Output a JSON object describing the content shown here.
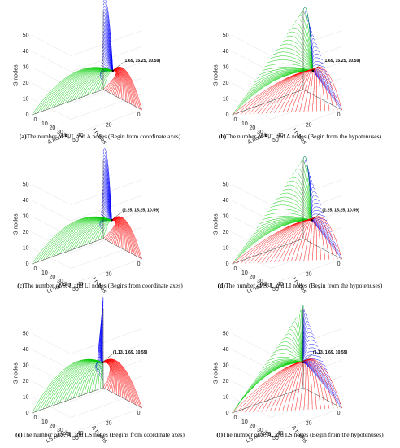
{
  "colors": {
    "s_curve": "#0000ff",
    "i_curve": "#00cc00",
    "third_curve": "#ff0000",
    "axis": "#000000"
  },
  "panels": [
    {
      "letter": "(a)",
      "caption": "The number of S, I, and A nodes (Begin from coordinate axes)",
      "point_label": "(1.69, 15.25, 10.59)",
      "labels": {
        "z": "S nodes",
        "x": "I nodes",
        "y": "A nodes"
      },
      "start": "axes"
    },
    {
      "letter": "(b)",
      "caption": "The number of S, I, and A nodes (Begin from the hypotenuses)",
      "point_label": "(1.69, 15.25, 10.59)",
      "labels": {
        "z": "S nodes",
        "x": "I nodes",
        "y": "A nodes"
      },
      "start": "hypotenuse"
    },
    {
      "letter": "(c)",
      "caption": "The number of S, I, and LI nodes (Begins from coordinate axes)",
      "point_label": "(2.25, 15.25, 10.59)",
      "labels": {
        "z": "S nodes",
        "x": "I nodes",
        "y": "LI nodes"
      },
      "start": "axes"
    },
    {
      "letter": "(d)",
      "caption": "The number of S, I, and LI nodes (Begin from the hypotenuses)",
      "point_label": "(2.25, 15.25, 10.59)",
      "labels": {
        "z": "S nodes",
        "x": "I nodes",
        "y": "LI nodes"
      },
      "start": "hypotenuse"
    },
    {
      "letter": "(e)",
      "caption": "The number of S, A, and LS nodes (Begins from coordinate axes)",
      "point_label": "(1.13, 1.69, 10.59)",
      "labels": {
        "z": "S nodes",
        "x": "A nodes",
        "y": "LS nodes"
      },
      "start": "axes"
    },
    {
      "letter": "(f)",
      "caption": "The number of S, A, and LS nodes (Begin from the hypotenuses)",
      "point_label": "(1.13, 1.69, 10.59)",
      "labels": {
        "z": "S nodes",
        "x": "A nodes",
        "y": "LS nodes"
      },
      "start": "hypotenuse"
    }
  ],
  "chart_data": [
    {
      "type": "line3d",
      "x_label": "I nodes",
      "y_label": "A nodes",
      "z_label": "S nodes",
      "x_ticks": [
        0,
        20,
        40
      ],
      "y_ticks": [
        0,
        10,
        20,
        30,
        40,
        50
      ],
      "z_ticks": [
        0,
        10,
        20,
        30,
        40,
        50
      ],
      "xlim": [
        0,
        50
      ],
      "ylim": [
        0,
        50
      ],
      "zlim": [
        0,
        50
      ],
      "equilibrium": [
        1.69,
        15.25,
        10.59
      ],
      "series": [
        {
          "values": []
        },
        {
          "values": []
        },
        {
          "values": []
        }
      ]
    },
    {
      "type": "line3d",
      "x_label": "I nodes",
      "y_label": "A nodes",
      "z_label": "S nodes",
      "x_ticks": [
        0,
        20,
        40
      ],
      "y_ticks": [
        0,
        10,
        20,
        30,
        40,
        50
      ],
      "z_ticks": [
        0,
        10,
        20,
        30,
        40,
        50
      ],
      "xlim": [
        0,
        50
      ],
      "ylim": [
        0,
        50
      ],
      "zlim": [
        0,
        50
      ],
      "equilibrium": [
        1.69,
        15.25,
        10.59
      ],
      "series": [
        {
          "values": []
        },
        {
          "values": []
        },
        {
          "values": []
        }
      ]
    },
    {
      "type": "line3d",
      "x_label": "I nodes",
      "y_label": "LI nodes",
      "z_label": "S nodes",
      "x_ticks": [
        0,
        20,
        40
      ],
      "y_ticks": [
        0,
        10,
        20,
        30,
        40,
        50
      ],
      "z_ticks": [
        0,
        10,
        20,
        30,
        40,
        50
      ],
      "xlim": [
        0,
        50
      ],
      "ylim": [
        0,
        50
      ],
      "zlim": [
        0,
        50
      ],
      "equilibrium": [
        2.25,
        15.25,
        10.59
      ],
      "series": [
        {
          "values": []
        },
        {
          "values": []
        },
        {
          "values": []
        }
      ]
    },
    {
      "type": "line3d",
      "x_label": "I nodes",
      "y_label": "LI nodes",
      "z_label": "S nodes",
      "x_ticks": [
        0,
        20,
        40
      ],
      "y_ticks": [
        0,
        10,
        20,
        30,
        40,
        50
      ],
      "z_ticks": [
        0,
        10,
        20,
        30,
        40,
        50
      ],
      "xlim": [
        0,
        50
      ],
      "ylim": [
        0,
        50
      ],
      "zlim": [
        0,
        50
      ],
      "equilibrium": [
        2.25,
        15.25,
        10.59
      ],
      "series": [
        {
          "values": []
        },
        {
          "values": []
        },
        {
          "values": []
        }
      ]
    },
    {
      "type": "line3d",
      "x_label": "A nodes",
      "y_label": "LS nodes",
      "z_label": "S nodes",
      "x_ticks": [
        0,
        20,
        40
      ],
      "y_ticks": [
        0,
        10,
        20,
        30,
        40,
        50
      ],
      "z_ticks": [
        0,
        10,
        20,
        30,
        40,
        50
      ],
      "xlim": [
        0,
        50
      ],
      "ylim": [
        0,
        50
      ],
      "zlim": [
        0,
        50
      ],
      "equilibrium": [
        1.13,
        1.69,
        10.59
      ],
      "series": [
        {
          "values": []
        },
        {
          "values": []
        },
        {
          "values": []
        }
      ]
    },
    {
      "type": "line3d",
      "x_label": "A nodes",
      "y_label": "LS nodes",
      "z_label": "S nodes",
      "x_ticks": [
        0,
        20,
        40
      ],
      "y_ticks": [
        0,
        10,
        20,
        30,
        40,
        50
      ],
      "z_ticks": [
        0,
        10,
        20,
        30,
        40,
        50
      ],
      "xlim": [
        0,
        50
      ],
      "ylim": [
        0,
        50
      ],
      "zlim": [
        0,
        50
      ],
      "equilibrium": [
        1.13,
        1.69,
        10.59
      ],
      "series": [
        {
          "values": []
        },
        {
          "values": []
        },
        {
          "values": []
        }
      ]
    }
  ]
}
